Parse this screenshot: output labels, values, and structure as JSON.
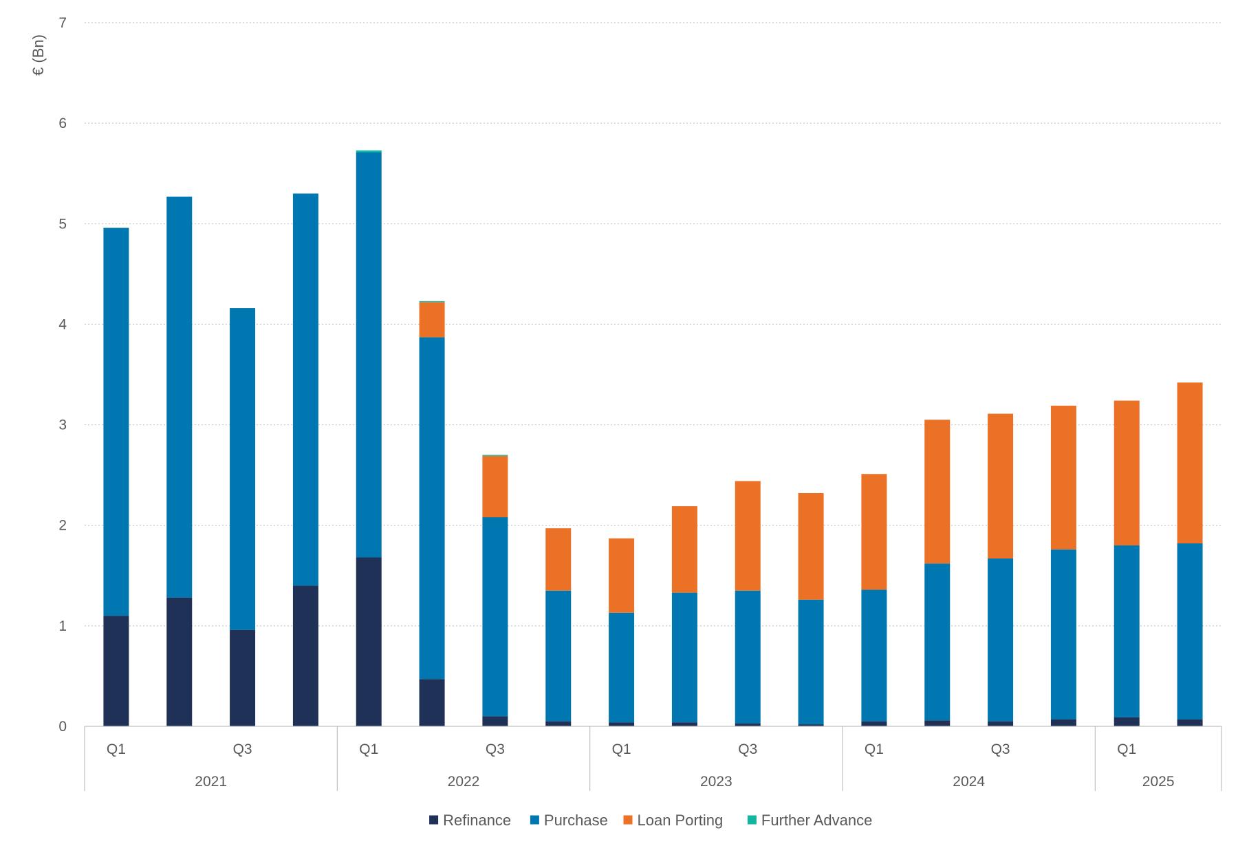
{
  "chart_data": {
    "type": "bar",
    "stacked": true,
    "title": "",
    "xlabel": "",
    "ylabel": "€ (Bn)",
    "ylim": [
      0,
      7
    ],
    "yticks": [
      0,
      1,
      2,
      3,
      4,
      5,
      6,
      7
    ],
    "grid": true,
    "legend_position": "bottom-center",
    "categories": [
      "2021 Q1",
      "2021 Q2",
      "2021 Q3",
      "2021 Q4",
      "2022 Q1",
      "2022 Q2",
      "2022 Q3",
      "2022 Q4",
      "2023 Q1",
      "2023 Q2",
      "2023 Q3",
      "2023 Q4",
      "2024 Q1",
      "2024 Q2",
      "2024 Q3",
      "2024 Q4",
      "2025 Q1",
      "2025 Q2"
    ],
    "quarter_tick_labels": [
      "Q1",
      "",
      "Q3",
      "",
      "Q1",
      "",
      "Q3",
      "",
      "Q1",
      "",
      "Q3",
      "",
      "Q1",
      "",
      "Q3",
      "",
      "Q1",
      ""
    ],
    "year_groups": [
      {
        "label": "2021",
        "quarters": 4
      },
      {
        "label": "2022",
        "quarters": 4
      },
      {
        "label": "2023",
        "quarters": 4
      },
      {
        "label": "2024",
        "quarters": 4
      },
      {
        "label": "2025",
        "quarters": 2
      }
    ],
    "series": [
      {
        "name": "Refinance",
        "color": "#1f3156",
        "values": [
          1.1,
          1.28,
          0.96,
          1.4,
          1.68,
          0.47,
          0.1,
          0.05,
          0.04,
          0.04,
          0.03,
          0.02,
          0.05,
          0.06,
          0.05,
          0.07,
          0.09,
          0.07
        ]
      },
      {
        "name": "Purchase",
        "color": "#0077b0",
        "values": [
          3.86,
          3.99,
          3.2,
          3.9,
          4.03,
          3.4,
          1.98,
          1.3,
          1.09,
          1.29,
          1.32,
          1.24,
          1.31,
          1.56,
          1.62,
          1.69,
          1.71,
          1.75
        ]
      },
      {
        "name": "Loan Porting",
        "color": "#ea7125",
        "values": [
          0,
          0,
          0,
          0,
          0,
          0.35,
          0.61,
          0.62,
          0.74,
          0.86,
          1.09,
          1.06,
          1.15,
          1.43,
          1.44,
          1.43,
          1.44,
          1.6
        ]
      },
      {
        "name": "Further Advance",
        "color": "#13b5a0",
        "values": [
          0,
          0,
          0,
          0,
          0.02,
          0.01,
          0.01,
          0,
          0,
          0,
          0,
          0,
          0,
          0,
          0,
          0,
          0,
          0
        ]
      }
    ]
  }
}
